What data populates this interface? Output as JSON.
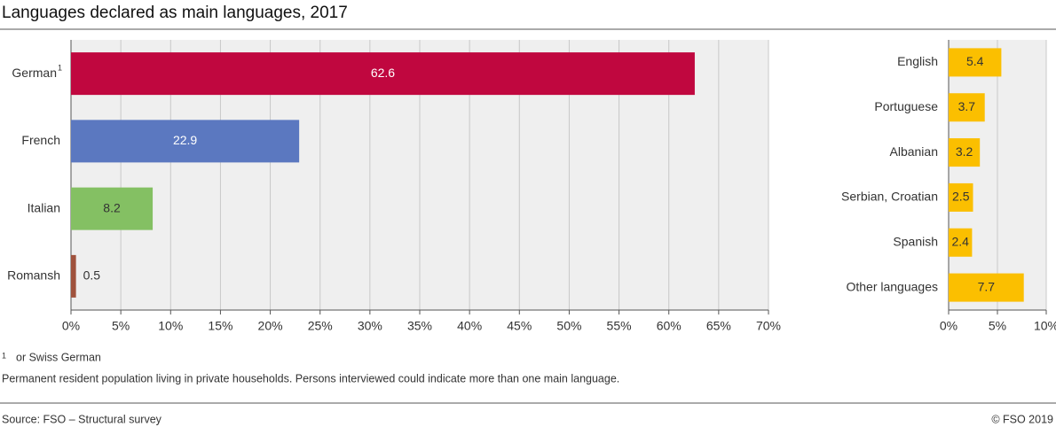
{
  "title": "Languages declared as main languages, 2017",
  "footnote": {
    "marker": "1",
    "text": "or Swiss German"
  },
  "note": "Permanent resident population living in private households. Persons interviewed could indicate more than one main language.",
  "source": "Source: FSO – Structural survey",
  "copyright": "© FSO 2019",
  "chart_data": [
    {
      "type": "barh",
      "categories": [
        "German",
        "French",
        "Italian",
        "Romansh"
      ],
      "values": [
        62.6,
        22.9,
        8.2,
        0.5
      ],
      "colors": [
        "#c0073f",
        "#5b78c0",
        "#84c063",
        "#a0523d"
      ],
      "xlim": [
        0,
        70
      ],
      "xticks": [
        {
          "value": 0,
          "label": "0%"
        },
        {
          "value": 5,
          "label": "5%"
        },
        {
          "value": 10,
          "label": "10%"
        },
        {
          "value": 15,
          "label": "15%"
        },
        {
          "value": 20,
          "label": "20%"
        },
        {
          "value": 25,
          "label": "25%"
        },
        {
          "value": 30,
          "label": "30%"
        },
        {
          "value": 35,
          "label": "35%"
        },
        {
          "value": 40,
          "label": "40%"
        },
        {
          "value": 45,
          "label": "45%"
        },
        {
          "value": 50,
          "label": "50%"
        },
        {
          "value": 55,
          "label": "55%"
        },
        {
          "value": 60,
          "label": "60%"
        },
        {
          "value": 65,
          "label": "65%"
        },
        {
          "value": 70,
          "label": "70%"
        }
      ],
      "grid": true
    },
    {
      "type": "barh",
      "categories": [
        "English",
        "Portuguese",
        "Albanian",
        "Serbian, Croatian",
        "Spanish",
        "Other languages"
      ],
      "values": [
        5.4,
        3.7,
        3.2,
        2.5,
        2.4,
        7.7
      ],
      "color": "#fbbf00",
      "xlim": [
        0,
        10
      ],
      "xticks": [
        {
          "value": 0,
          "label": "0%"
        },
        {
          "value": 5,
          "label": "5%"
        },
        {
          "value": 10,
          "label": "10%"
        }
      ],
      "grid": true
    }
  ]
}
